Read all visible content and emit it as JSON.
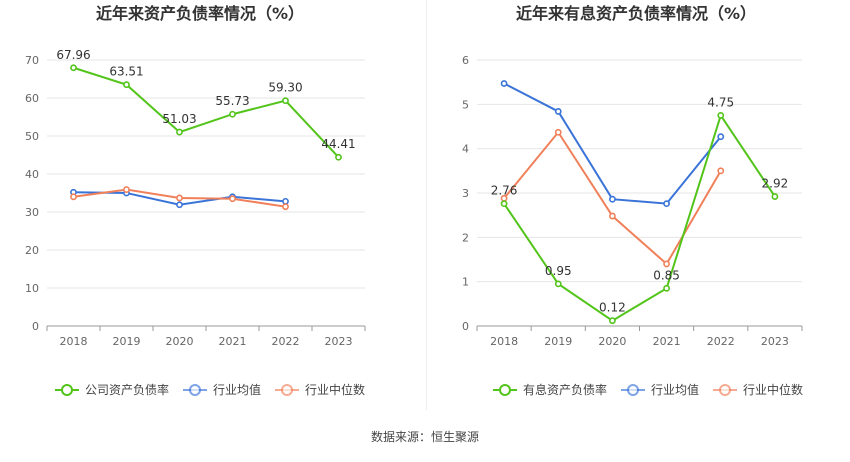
{
  "colors": {
    "company": "#52c41a",
    "industry_avg": "#3a74d8",
    "industry_median": "#f0805a",
    "grid": "#e6e6e6",
    "axis": "#999999",
    "tick_text": "#666666",
    "title": "#333333"
  },
  "source_label": "数据来源：",
  "source_value": "恒生聚源",
  "chart_data": [
    {
      "type": "line",
      "title": "近年来资产负债率情况（%）",
      "categories": [
        "2018",
        "2019",
        "2020",
        "2021",
        "2022",
        "2023"
      ],
      "ylim": [
        0,
        70
      ],
      "yticks": [
        0,
        10,
        20,
        30,
        40,
        50,
        60,
        70
      ],
      "grid": true,
      "legend_position": "bottom",
      "series": [
        {
          "name": "公司资产负债率",
          "key": "company",
          "values": [
            67.96,
            63.51,
            51.03,
            55.73,
            59.3,
            44.41
          ],
          "labels": [
            "67.96",
            "63.51",
            "51.03",
            "55.73",
            "59.30",
            "44.41"
          ]
        },
        {
          "name": "行业均值",
          "key": "industry_avg",
          "values": [
            35.2,
            35.0,
            31.9,
            34.0,
            32.8,
            null
          ]
        },
        {
          "name": "行业中位数",
          "key": "industry_median",
          "values": [
            34.0,
            35.9,
            33.7,
            33.5,
            31.4,
            null
          ]
        }
      ]
    },
    {
      "type": "line",
      "title": "近年来有息资产负债率情况（%）",
      "categories": [
        "2018",
        "2019",
        "2020",
        "2021",
        "2022",
        "2023"
      ],
      "ylim": [
        0,
        6
      ],
      "yticks": [
        0,
        1,
        2,
        3,
        4,
        5,
        6
      ],
      "grid": true,
      "legend_position": "bottom",
      "series": [
        {
          "name": "有息资产负债率",
          "key": "company",
          "values": [
            2.76,
            0.95,
            0.12,
            0.85,
            4.75,
            2.92
          ],
          "labels": [
            "2.76",
            "0.95",
            "0.12",
            "0.85",
            "4.75",
            "2.92"
          ]
        },
        {
          "name": "行业均值",
          "key": "industry_avg",
          "values": [
            5.47,
            4.84,
            2.86,
            2.76,
            4.27,
            null
          ]
        },
        {
          "name": "行业中位数",
          "key": "industry_median",
          "values": [
            2.88,
            4.37,
            2.48,
            1.4,
            3.5,
            null
          ]
        }
      ]
    }
  ]
}
